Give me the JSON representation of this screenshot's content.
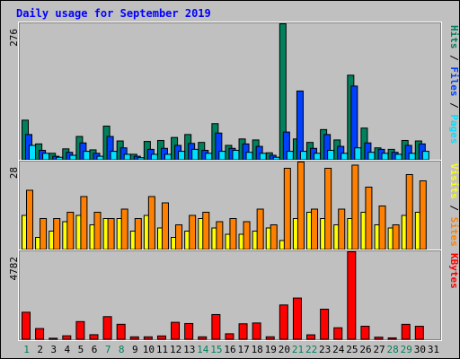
{
  "chart_data": {
    "type": "bar",
    "title": "Daily usage for September 2019",
    "days": [
      "1",
      "2",
      "3",
      "4",
      "5",
      "6",
      "7",
      "8",
      "9",
      "10",
      "11",
      "12",
      "13",
      "14",
      "15",
      "16",
      "17",
      "18",
      "19",
      "20",
      "21",
      "22",
      "23",
      "24",
      "25",
      "26",
      "27",
      "28",
      "29",
      "30",
      "31"
    ],
    "weekend_days": [
      "1",
      "7",
      "8",
      "14",
      "15",
      "21",
      "22",
      "28",
      "29"
    ],
    "panels": [
      {
        "id": "top",
        "max_label": "276",
        "ymax": 276,
        "legend": [
          {
            "label": "Hits",
            "color": "#00805c"
          },
          {
            "label": "Files",
            "color": "#0040ff"
          },
          {
            "label": "Pages",
            "color": "#00e0ff"
          }
        ],
        "series": [
          {
            "name": "Hits",
            "color": "#00805c",
            "values": [
              81,
              33,
              14,
              23,
              48,
              21,
              69,
              39,
              12,
              38,
              40,
              46,
              52,
              36,
              74,
              30,
              43,
              41,
              15,
              276,
              43,
              36,
              62,
              41,
              172,
              65,
              25,
              22,
              40,
              39,
              0
            ]
          },
          {
            "name": "Files",
            "color": "#0040ff",
            "values": [
              52,
              20,
              8,
              16,
              35,
              14,
              48,
              25,
              8,
              22,
              24,
              30,
              34,
              20,
              55,
              24,
              33,
              28,
              10,
              57,
              140,
              24,
              52,
              28,
              150,
              35,
              22,
              16,
              30,
              33,
              0
            ]
          },
          {
            "name": "Pages",
            "color": "#00e0ff",
            "values": [
              30,
              14,
              6,
              10,
              18,
              8,
              18,
              12,
              5,
              12,
              12,
              18,
              22,
              14,
              18,
              20,
              16,
              14,
              6,
              18,
              18,
              14,
              20,
              14,
              25,
              16,
              14,
              12,
              14,
              18,
              0
            ]
          }
        ]
      },
      {
        "id": "mid",
        "max_label": "28",
        "ymax": 28,
        "legend": [
          {
            "label": "Visits",
            "color": "#ffff00"
          },
          {
            "label": "Sites",
            "color": "#ff8000"
          }
        ],
        "series": [
          {
            "name": "Visits",
            "color": "#ffff00",
            "values": [
              11,
              4,
              6,
              9,
              11,
              8,
              10,
              10,
              6,
              11,
              7,
              4,
              6,
              10,
              7,
              5,
              5,
              6,
              7,
              3,
              10,
              12,
              10,
              8,
              10,
              12,
              8,
              7,
              11,
              12,
              0
            ]
          },
          {
            "name": "Sites",
            "color": "#ff8000",
            "values": [
              19,
              10,
              10,
              12,
              17,
              12,
              10,
              13,
              10,
              17,
              15,
              8,
              11,
              12,
              9,
              10,
              9,
              13,
              8,
              26,
              28,
              13,
              26,
              13,
              27,
              20,
              14,
              8,
              24,
              22,
              0
            ]
          }
        ]
      },
      {
        "id": "bot",
        "max_label": "4782",
        "ymax": 4782,
        "legend": [
          {
            "label": "KBytes",
            "color": "#ff0000"
          }
        ],
        "series": [
          {
            "name": "KBytes",
            "color": "#ff0000",
            "values": [
              1494,
              608,
              79,
              213,
              985,
              272,
              1255,
              838,
              155,
              156,
              205,
              946,
              880,
              157,
              1368,
              322,
              866,
              910,
              159,
              1889,
              2266,
              266,
              1659,
              650,
              4782,
              733,
              138,
              99,
              836,
              730,
              0
            ]
          }
        ]
      }
    ]
  }
}
